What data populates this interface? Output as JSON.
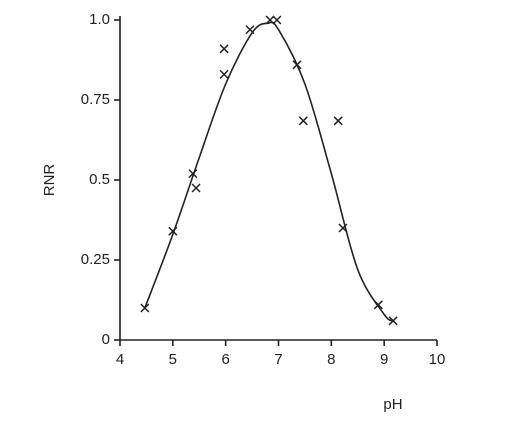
{
  "chart_data": {
    "type": "scatter",
    "x_label": "pH",
    "y_label": "RNR",
    "x": [
      4.47,
      5.0,
      5.38,
      5.44,
      5.97,
      5.97,
      6.46,
      6.84,
      6.97,
      7.35,
      7.47,
      8.13,
      8.22,
      8.89,
      9.17
    ],
    "values": [
      0.1,
      0.34,
      0.52,
      0.475,
      0.91,
      0.83,
      0.97,
      1.0,
      1.0,
      0.86,
      0.685,
      0.685,
      0.35,
      0.11,
      0.06
    ],
    "curve": {
      "x": [
        4.47,
        5.0,
        5.5,
        6.0,
        6.5,
        6.8,
        7.0,
        7.5,
        8.0,
        8.5,
        9.0,
        9.17
      ],
      "values": [
        0.1,
        0.33,
        0.57,
        0.8,
        0.96,
        0.99,
        0.97,
        0.8,
        0.52,
        0.22,
        0.08,
        0.06
      ]
    },
    "color": "#222222",
    "xlim": [
      4,
      10
    ],
    "xticks": [
      4,
      5,
      6,
      7,
      8,
      9,
      10
    ],
    "ylim": [
      0,
      1
    ],
    "yticks": [
      0,
      0.25,
      0.5,
      0.75,
      {
        "value": 1,
        "label": "1.0"
      }
    ]
  }
}
